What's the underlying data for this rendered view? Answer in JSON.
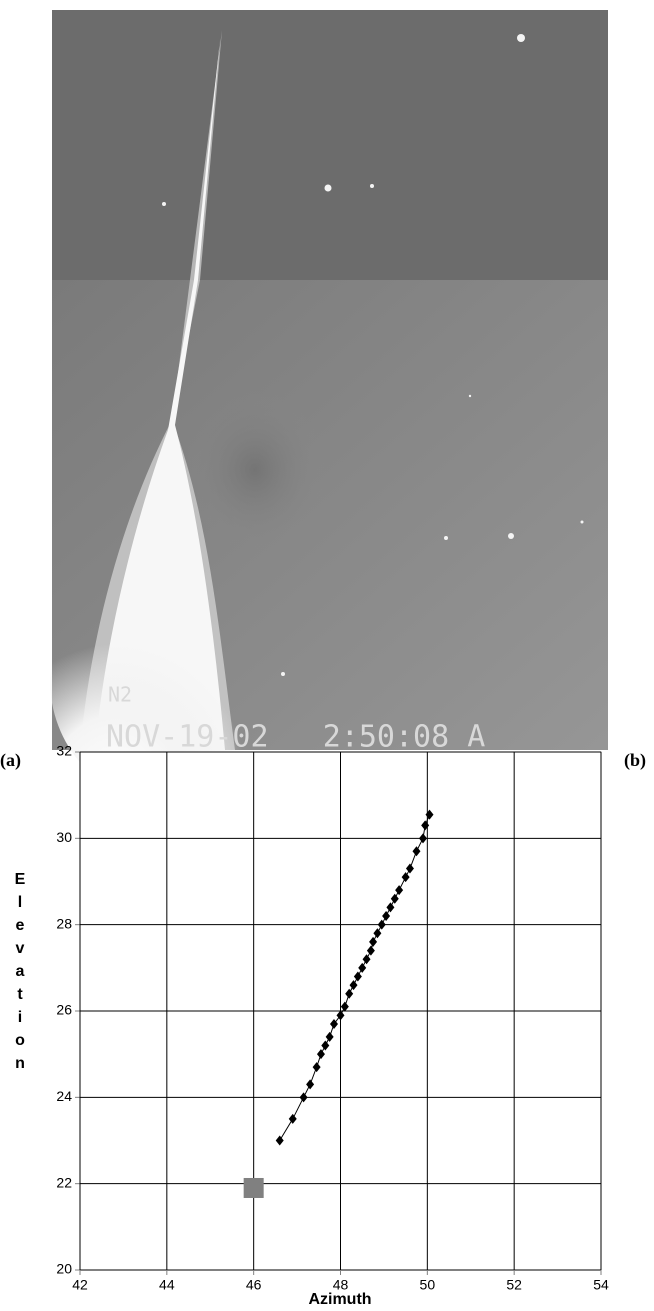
{
  "figure_labels": [
    "(a)",
    "(b)"
  ],
  "image": {
    "overlay": [
      "N2",
      "NOV-19-02   2:50:08 A"
    ]
  },
  "chart_data": {
    "type": "line",
    "x_label": "Azimuth",
    "y_label": "Elevation",
    "xlim": [
      42,
      54
    ],
    "xticks": [
      42,
      44,
      46,
      48,
      50,
      52,
      54
    ],
    "ylim": [
      20,
      32
    ],
    "yticks": [
      20,
      22,
      24,
      26,
      28,
      30,
      32
    ],
    "grid": true,
    "series": [
      {
        "color": "#000000",
        "marker": "diamond",
        "line": true,
        "x": [
          46.6,
          46.9,
          47.15,
          47.3,
          47.45,
          47.55,
          47.65,
          47.75,
          47.85,
          48.0,
          48.1,
          48.2,
          48.3,
          48.4,
          48.5,
          48.6,
          48.7,
          48.75,
          48.85,
          48.95,
          49.05,
          49.15,
          49.25,
          49.35,
          49.5,
          49.6,
          49.75,
          49.9,
          49.95,
          50.05
        ],
        "values": [
          23.0,
          23.5,
          24.0,
          24.3,
          24.7,
          25.0,
          25.2,
          25.4,
          25.7,
          25.9,
          26.1,
          26.4,
          26.6,
          26.8,
          27.0,
          27.2,
          27.4,
          27.6,
          27.8,
          28.0,
          28.2,
          28.4,
          28.6,
          28.8,
          29.1,
          29.3,
          29.7,
          30.0,
          30.3,
          30.55
        ]
      },
      {
        "color": "#808080",
        "marker": "square",
        "line": false,
        "x": [
          46.0
        ],
        "values": [
          21.9
        ]
      }
    ]
  }
}
